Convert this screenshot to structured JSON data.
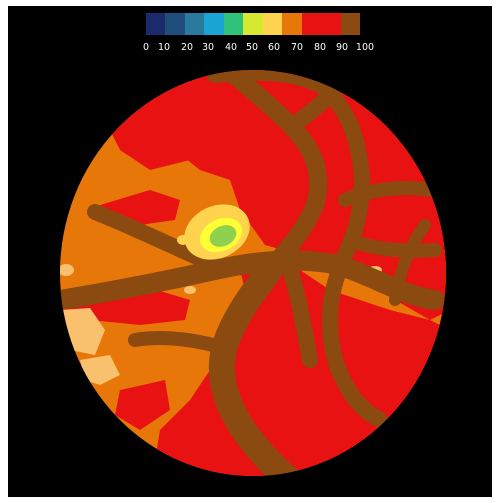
{
  "image": {
    "background": "#000000",
    "colorbar": {
      "ticks": [
        "0",
        "10",
        "20",
        "30",
        "40",
        "50",
        "60",
        "70",
        "80",
        "90",
        "100"
      ],
      "colors": [
        "#1c2a6b",
        "#1f4e7a",
        "#2b7a9e",
        "#1aa4d4",
        "#2ec27a",
        "#d7e830",
        "#ffd34d",
        "#e8770a",
        "#e81212",
        "#e81212",
        "#8b4a10"
      ]
    },
    "fundus_map": {
      "colors": {
        "background_level": "#e8770a",
        "high_level": "#e81212",
        "vessel": "#8b4a10",
        "cup_ring_outer": "#ffd34d",
        "cup_ring_mid": "#ffff36",
        "cup_center": "#8fd14f",
        "pale_spots": "#f9c06d"
      }
    }
  }
}
